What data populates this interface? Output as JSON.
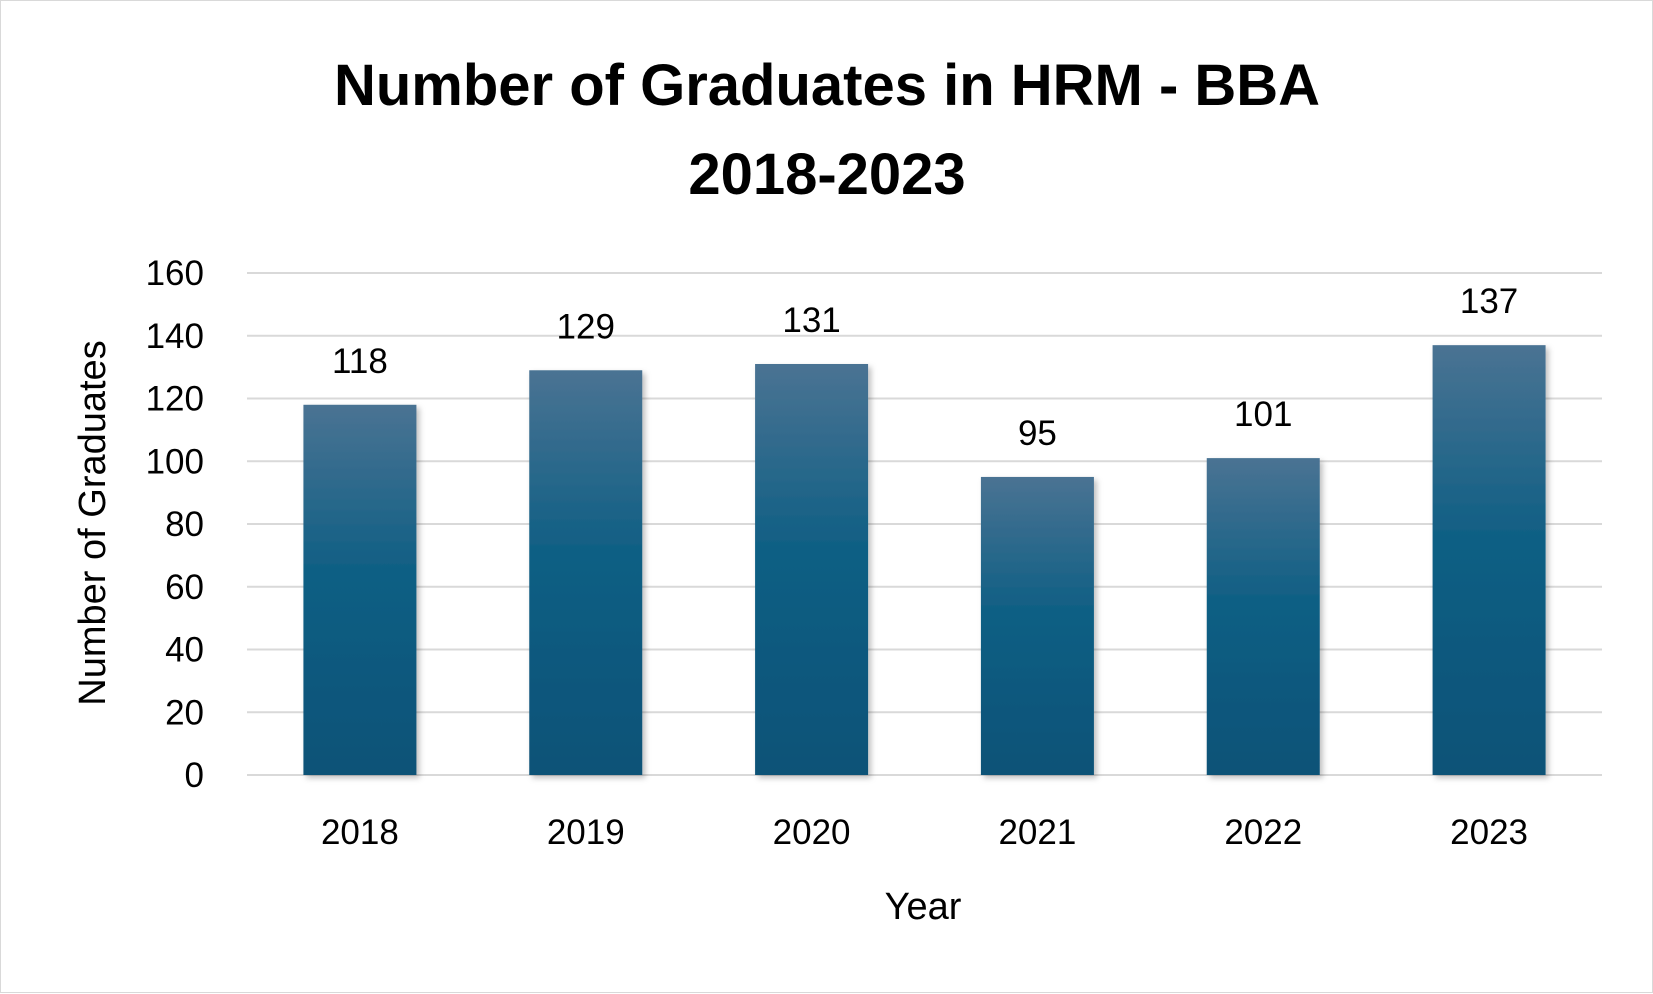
{
  "chart_data": {
    "type": "bar",
    "title": "Number of Graduates in HRM - BBA",
    "subtitle": "2018-2023",
    "xlabel": "Year",
    "ylabel": "Number of Graduates",
    "categories": [
      "2018",
      "2019",
      "2020",
      "2021",
      "2022",
      "2023"
    ],
    "values": [
      118,
      129,
      131,
      95,
      101,
      137
    ],
    "ylim": [
      0,
      160
    ],
    "yticks": [
      0,
      20,
      40,
      60,
      80,
      100,
      120,
      140,
      160
    ],
    "grid": true,
    "legend": "none",
    "bar_color_top": "#4a7393",
    "bar_color_bottom": "#0d5277",
    "gridline_color": "#d9d9d9"
  }
}
